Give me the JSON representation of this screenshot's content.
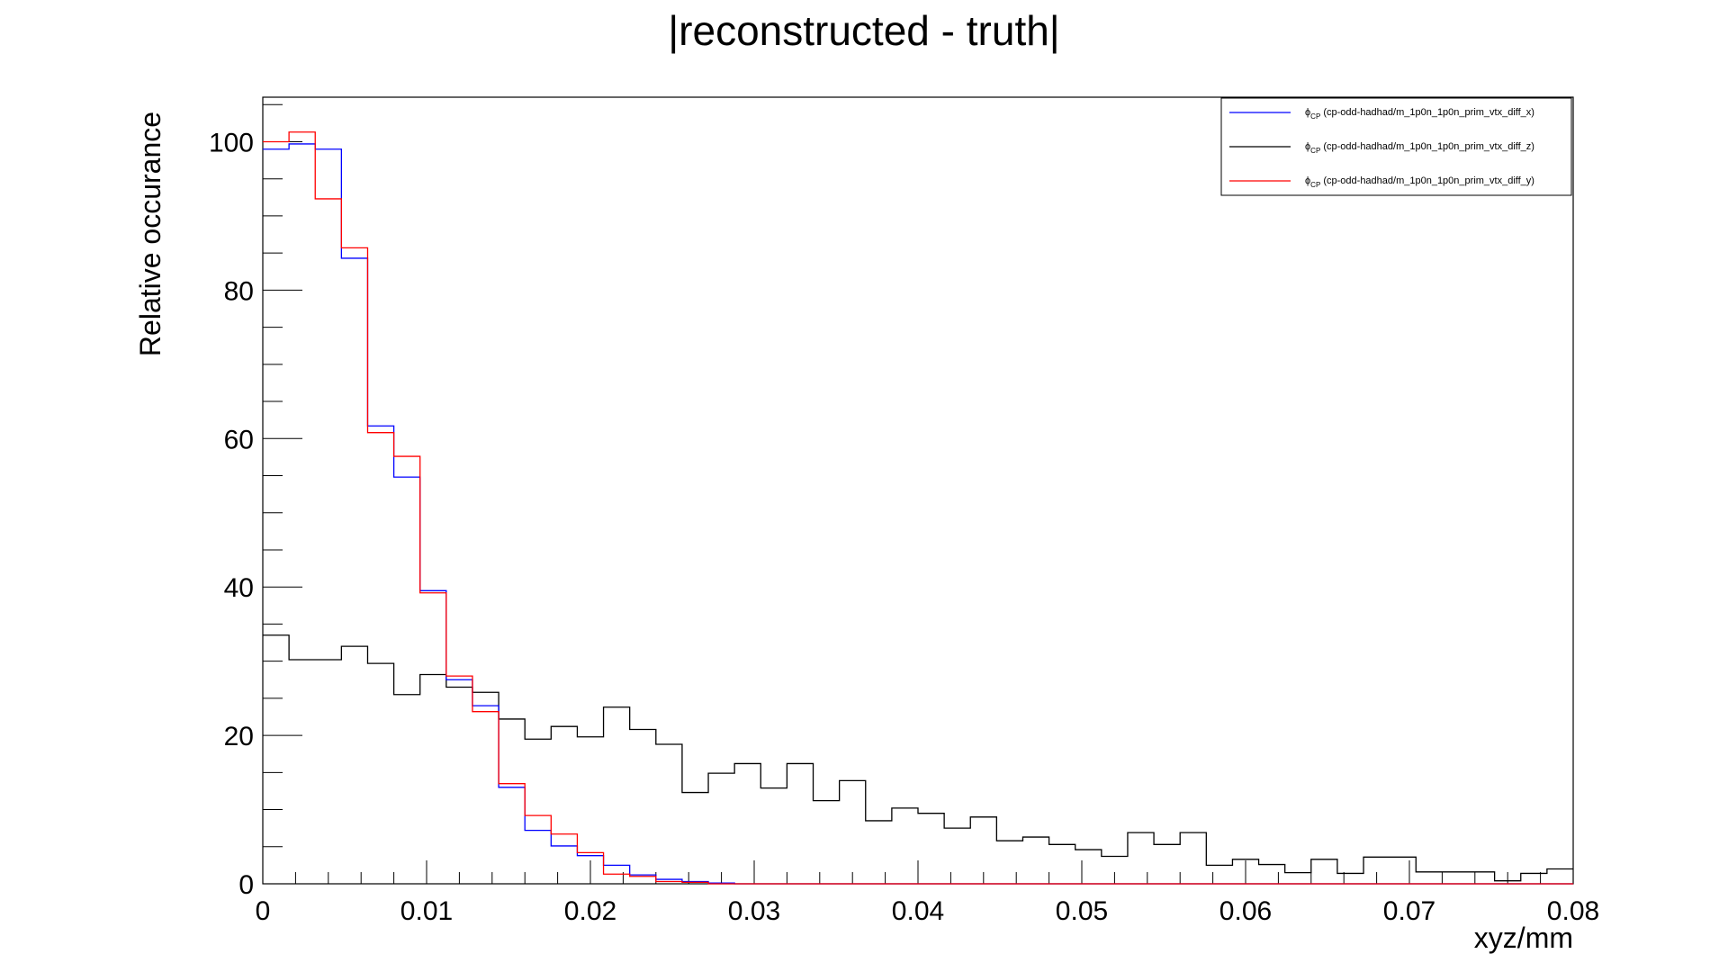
{
  "chart_data": {
    "type": "line",
    "title": "|reconstructed - truth|",
    "xlabel": "xyz/mm",
    "ylabel": "Relative occurance",
    "xlim": [
      0,
      0.08
    ],
    "ylim": [
      0,
      106
    ],
    "x_ticks": [
      "0",
      "0.01",
      "0.02",
      "0.03",
      "0.04",
      "0.05",
      "0.06",
      "0.07",
      "0.08"
    ],
    "y_ticks": [
      "0",
      "20",
      "40",
      "60",
      "80",
      "100"
    ],
    "bin_width": 0.0016,
    "grid": false,
    "legend_position": "top-right",
    "series": [
      {
        "name": "(cp-odd-hadhad/m_1p0n_1p0n_prim_vtx_diff_x)",
        "color": "#0000ff",
        "values": [
          99.0,
          99.7,
          99.0,
          84.3,
          61.7,
          54.8,
          39.5,
          27.5,
          24.0,
          13.0,
          7.2,
          5.1,
          3.8,
          2.5,
          1.2,
          0.6,
          0.3,
          0.1,
          0,
          0,
          0,
          0,
          0,
          0,
          0,
          0,
          0,
          0,
          0,
          0,
          0,
          0,
          0,
          0,
          0,
          0,
          0,
          0,
          0,
          0,
          0,
          0,
          0,
          0,
          0,
          0,
          0,
          0,
          0,
          0
        ]
      },
      {
        "name": "(cp-odd-hadhad/m_1p0n_1p0n_prim_vtx_diff_z)",
        "color": "#000000",
        "values": [
          33.5,
          30.2,
          30.2,
          32.0,
          29.7,
          25.5,
          28.2,
          26.5,
          25.8,
          22.2,
          19.5,
          21.2,
          19.8,
          23.8,
          20.8,
          18.8,
          12.3,
          14.9,
          16.2,
          12.9,
          16.2,
          11.2,
          13.9,
          8.5,
          10.2,
          9.5,
          7.5,
          9.0,
          5.8,
          6.3,
          5.3,
          4.6,
          3.7,
          6.9,
          5.3,
          6.9,
          2.5,
          3.3,
          2.6,
          1.5,
          3.3,
          1.4,
          3.6,
          3.6,
          1.6,
          1.6,
          1.6,
          0.4,
          1.4,
          2.0
        ]
      },
      {
        "name": "(cp-odd-hadhad/m_1p0n_1p0n_prim_vtx_diff_y)",
        "color": "#ff0000",
        "values": [
          100.0,
          101.3,
          92.3,
          85.7,
          60.8,
          57.6,
          39.2,
          28.0,
          23.2,
          13.5,
          9.2,
          6.7,
          4.2,
          1.3,
          1.0,
          0.3,
          0.2,
          0,
          0,
          0,
          0,
          0,
          0,
          0,
          0,
          0,
          0,
          0,
          0,
          0,
          0,
          0,
          0,
          0,
          0,
          0,
          0,
          0,
          0,
          0,
          0,
          0,
          0,
          0,
          0,
          0,
          0,
          0,
          0,
          0
        ]
      }
    ],
    "legend_prefix": "ϕ",
    "legend_subscript": "CP"
  }
}
